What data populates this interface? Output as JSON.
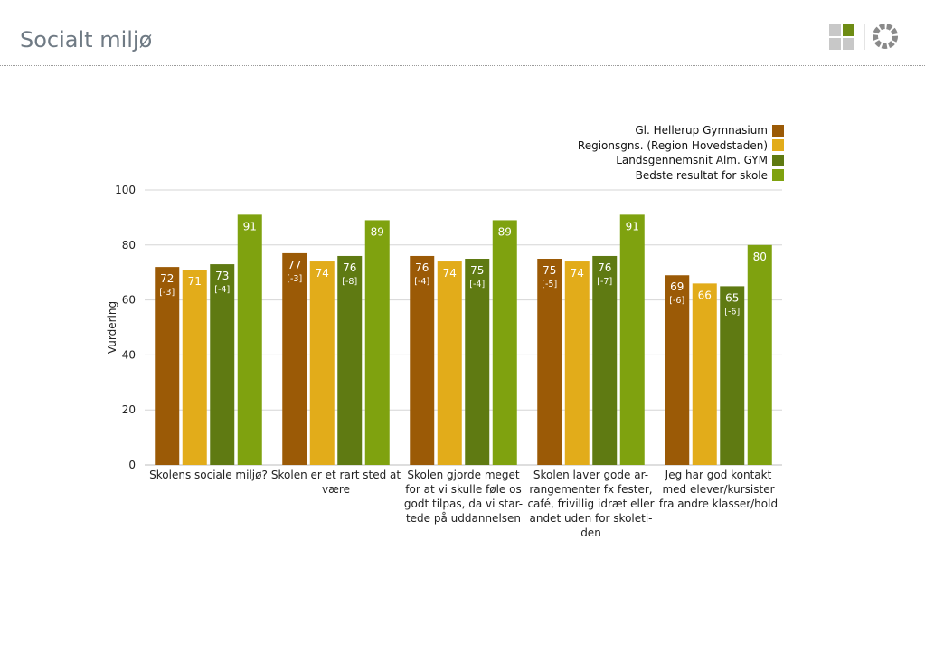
{
  "page": {
    "title": "Socialt miljø"
  },
  "colors": {
    "series": [
      "#9b5a06",
      "#e2ac1a",
      "#5f7a12",
      "#7fa20f"
    ],
    "grid": "#d6d6d6",
    "logo_gray": "#c8c8c8",
    "logo_green": "#6e8c14"
  },
  "chart_data": {
    "type": "bar",
    "title": "",
    "xlabel": "",
    "ylabel": "Vurdering",
    "ylim": [
      0,
      100
    ],
    "yticks": [
      "0",
      "20",
      "40",
      "60",
      "80",
      "100"
    ],
    "grid": true,
    "legend_position": "top-right",
    "categories": [
      [
        "Skolens sociale miljø?"
      ],
      [
        "Skolen er et rart sted at",
        "være"
      ],
      [
        "Skolen gjorde meget",
        "for at vi skulle føle os",
        "godt tilpas, da vi star-",
        "tede på uddannelsen"
      ],
      [
        "Skolen laver gode ar-",
        "rangementer fx fester,",
        "café, frivillig idræt eller",
        "andet uden for skoleti-",
        "den"
      ],
      [
        "Jeg har god kontakt",
        "med elever/kursister",
        "fra andre klasser/hold"
      ]
    ],
    "series": [
      {
        "name": "Gl. Hellerup Gymnasium",
        "values": [
          72,
          77,
          76,
          75,
          69
        ],
        "notes": [
          "[-3]",
          "[-3]",
          "[-4]",
          "[-5]",
          "[-6]"
        ]
      },
      {
        "name": "Regionsgns. (Region Hovedstaden)",
        "values": [
          71,
          74,
          74,
          74,
          66
        ],
        "notes": [
          "",
          "",
          "",
          "",
          ""
        ]
      },
      {
        "name": "Landsgennemsnit Alm. GYM",
        "values": [
          73,
          76,
          75,
          76,
          65
        ],
        "notes": [
          "[-4]",
          "[-8]",
          "[-4]",
          "[-7]",
          "[-6]"
        ]
      },
      {
        "name": "Bedste resultat for skole",
        "values": [
          91,
          89,
          89,
          91,
          80
        ],
        "notes": [
          "",
          "",
          "",
          "",
          ""
        ]
      }
    ]
  }
}
